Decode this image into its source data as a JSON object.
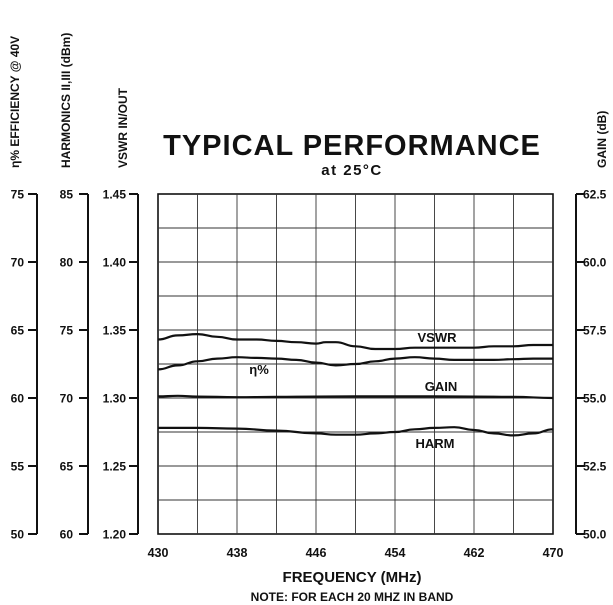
{
  "chart_data": {
    "type": "line",
    "title": "TYPICAL PERFORMANCE",
    "subtitle": "at 25°C",
    "xlabel": "FREQUENCY (MHz)",
    "note": "NOTE: FOR EACH 20 MHZ IN BAND",
    "grid": true,
    "x_ticks": [
      430,
      438,
      446,
      454,
      462,
      470
    ],
    "xlim": [
      430,
      470
    ],
    "axes": [
      {
        "id": "efficiency",
        "label": "η% EFFICIENCY @ 40V",
        "ticks": [
          "75",
          "70",
          "65",
          "60",
          "55",
          "50"
        ],
        "range": [
          50,
          75
        ]
      },
      {
        "id": "harmonics",
        "label": "HARMONICS II,III (dBm)",
        "ticks": [
          "85",
          "80",
          "75",
          "70",
          "65",
          "60"
        ],
        "range": [
          60,
          85
        ]
      },
      {
        "id": "vswr",
        "label": "VSWR IN/OUT",
        "ticks": [
          "1.45",
          "1.40",
          "1.35",
          "1.30",
          "1.25",
          "1.20"
        ],
        "range": [
          1.2,
          1.45
        ]
      },
      {
        "id": "gain",
        "label": "GAIN (dB)",
        "ticks": [
          "62.5",
          "60.0",
          "57.5",
          "55.0",
          "52.5",
          "50.0"
        ],
        "range": [
          50.0,
          62.5
        ]
      }
    ],
    "series": [
      {
        "name": "VSWR",
        "axis": "vswr",
        "x": [
          430,
          432,
          434,
          436,
          438,
          440,
          442,
          444,
          446,
          447,
          448,
          450,
          452,
          454,
          456,
          458,
          460,
          462,
          464,
          466,
          468,
          470
        ],
        "values": [
          1.343,
          1.346,
          1.347,
          1.345,
          1.343,
          1.343,
          1.342,
          1.341,
          1.34,
          1.341,
          1.341,
          1.338,
          1.336,
          1.336,
          1.337,
          1.337,
          1.337,
          1.337,
          1.338,
          1.338,
          1.339,
          1.339
        ]
      },
      {
        "name": "η%",
        "axis": "efficiency",
        "x": [
          430,
          432,
          434,
          436,
          438,
          440,
          442,
          444,
          446,
          448,
          450,
          452,
          454,
          456,
          458,
          460,
          462,
          464,
          466,
          468,
          470
        ],
        "values": [
          62.1,
          62.4,
          62.7,
          62.9,
          63.0,
          62.95,
          62.9,
          62.8,
          62.6,
          62.4,
          62.5,
          62.7,
          62.9,
          63.0,
          62.9,
          62.8,
          62.8,
          62.8,
          62.85,
          62.9,
          62.9
        ]
      },
      {
        "name": "GAIN",
        "axis": "gain",
        "x": [
          430,
          432,
          434,
          438,
          442,
          446,
          450,
          454,
          458,
          462,
          466,
          470
        ],
        "values": [
          55.06,
          55.08,
          55.05,
          55.03,
          55.04,
          55.05,
          55.06,
          55.06,
          55.06,
          55.05,
          55.04,
          55.0
        ]
      },
      {
        "name": "HARM",
        "axis": "harmonics",
        "x": [
          430,
          434,
          438,
          442,
          446,
          448,
          450,
          452,
          454,
          456,
          458,
          460,
          462,
          464,
          466,
          468,
          470
        ],
        "values": [
          67.8,
          67.8,
          67.75,
          67.6,
          67.4,
          67.3,
          67.3,
          67.4,
          67.5,
          67.7,
          67.8,
          67.85,
          67.65,
          67.4,
          67.25,
          67.4,
          67.7
        ]
      }
    ]
  }
}
